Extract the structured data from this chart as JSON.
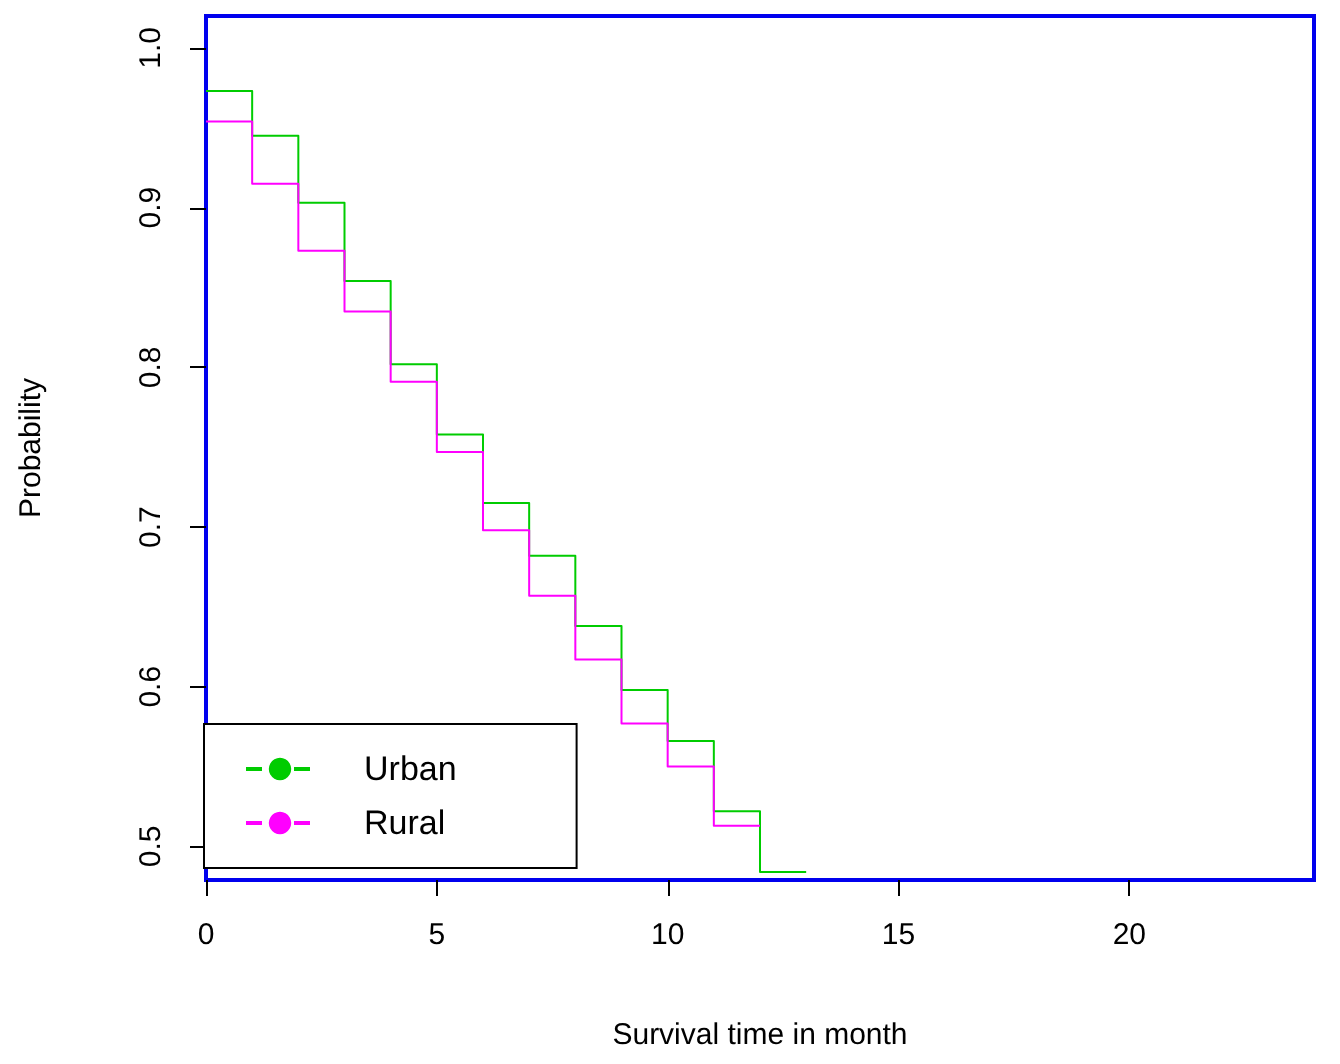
{
  "chart_data": {
    "type": "step",
    "xlabel": "Survival time in month",
    "ylabel": "Probability",
    "series": [
      {
        "name": "Urban",
        "color": "#00cc00",
        "x": [
          0,
          1,
          2,
          3,
          4,
          5,
          6,
          7,
          8,
          9,
          10,
          11,
          12,
          13
        ],
        "values": [
          0.973,
          0.945,
          0.903,
          0.854,
          0.802,
          0.758,
          0.715,
          0.682,
          0.638,
          0.598,
          0.566,
          0.522,
          0.484,
          0.484
        ]
      },
      {
        "name": "Rural",
        "color": "#ff00ff",
        "x": [
          0,
          1,
          2,
          3,
          4,
          5,
          6,
          7,
          8,
          9,
          10,
          11,
          12
        ],
        "values": [
          0.954,
          0.915,
          0.873,
          0.835,
          0.791,
          0.747,
          0.698,
          0.657,
          0.617,
          0.577,
          0.55,
          0.513,
          0.513
        ]
      }
    ],
    "xlim": [
      0,
      24
    ],
    "xticks": [
      0,
      5,
      10,
      15,
      20
    ],
    "ylim": [
      0.479,
      1.02
    ],
    "yticks": [
      0.5,
      0.6,
      0.7,
      0.8,
      0.9,
      {
        "value": 1,
        "label": "1.0"
      }
    ],
    "grid": false,
    "legend": "bottom left",
    "marker": "none",
    "line_style": "solid"
  }
}
